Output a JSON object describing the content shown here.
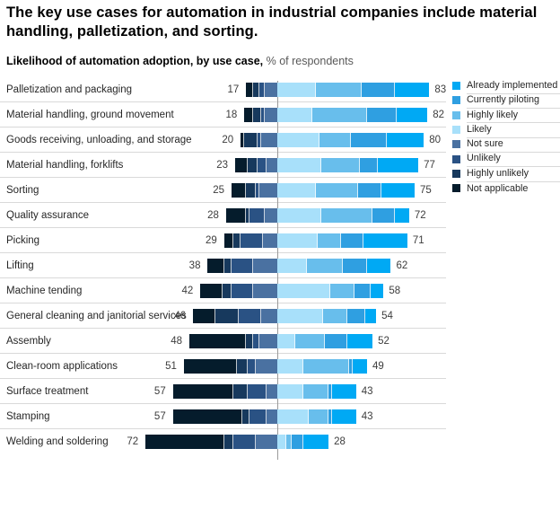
{
  "title": "The key use cases for automation in industrial companies include material handling, palletization, and sorting.",
  "subtitle": {
    "bold": "Likelihood of automation adoption, by use case,",
    "rest": " % of respondents"
  },
  "colors": {
    "already_implemented": "#00A9F4",
    "currently_piloting": "#2F9FE1",
    "highly_likely": "#68BEEC",
    "likely": "#A8E0FA",
    "not_sure": "#4A71A1",
    "unlikely": "#2A5284",
    "highly_unlikely": "#17395D",
    "not_applicable": "#051C2C",
    "separator": "#d9d9d9",
    "center_line": "#9b9b9b"
  },
  "legend": [
    {
      "key": "already_implemented",
      "label": "Already implemented"
    },
    {
      "key": "currently_piloting",
      "label": "Currently piloting"
    },
    {
      "key": "highly_likely",
      "label": "Highly likely"
    },
    {
      "key": "likely",
      "label": "Likely"
    },
    {
      "key": "not_sure",
      "label": "Not sure"
    },
    {
      "key": "unlikely",
      "label": "Unlikely"
    },
    {
      "key": "highly_unlikely",
      "label": "Highly unlikely"
    },
    {
      "key": "not_applicable",
      "label": "Not applicable"
    }
  ],
  "chart_data": {
    "type": "bar",
    "variant": "horizontal-diverging-stacked",
    "title": "Likelihood of automation adoption, by use case",
    "unit": "% of respondents",
    "legend_position": "right",
    "grid": "row-separators-only",
    "categories": [
      "Palletization and packaging",
      "Material handling, ground movement",
      "Goods receiving, unloading, and storage",
      "Material handling, forklifts",
      "Sorting",
      "Quality assurance",
      "Picking",
      "Lifting",
      "Machine tending",
      "General cleaning and janitorial services",
      "Assembly",
      "Clean-room applications",
      "Surface treatment",
      "Stamping",
      "Welding and soldering"
    ],
    "left_totals": [
      17,
      18,
      20,
      23,
      25,
      28,
      29,
      38,
      42,
      46,
      48,
      51,
      57,
      57,
      72
    ],
    "right_totals": [
      83,
      82,
      80,
      77,
      75,
      72,
      71,
      62,
      58,
      54,
      52,
      49,
      43,
      43,
      28
    ],
    "series": [
      {
        "name": "Not applicable",
        "key": "not_applicable",
        "side": "left",
        "order_note": "outermost left",
        "values": [
          4,
          5,
          2,
          7,
          8,
          11,
          5,
          9,
          12,
          12,
          31,
          29,
          33,
          38,
          43
        ]
      },
      {
        "name": "Highly unlikely",
        "key": "highly_unlikely",
        "side": "left",
        "values": [
          3,
          4,
          7,
          5,
          5,
          2,
          4,
          4,
          5,
          13,
          4,
          6,
          8,
          4,
          5
        ]
      },
      {
        "name": "Unlikely",
        "key": "unlikely",
        "side": "left",
        "values": [
          3,
          2,
          2,
          5,
          2,
          8,
          12,
          12,
          12,
          12,
          3,
          4,
          10,
          9,
          12
        ]
      },
      {
        "name": "Not sure",
        "key": "not_sure",
        "side": "left",
        "order_note": "adjacent to center",
        "values": [
          7,
          7,
          9,
          6,
          10,
          7,
          8,
          13,
          13,
          9,
          10,
          12,
          6,
          6,
          12
        ]
      },
      {
        "name": "Likely",
        "key": "likely",
        "side": "right",
        "order_note": "adjacent to center",
        "values": [
          21,
          19,
          23,
          24,
          21,
          24,
          22,
          16,
          29,
          25,
          10,
          14,
          14,
          17,
          5
        ]
      },
      {
        "name": "Highly likely",
        "key": "highly_likely",
        "side": "right",
        "values": [
          25,
          30,
          17,
          21,
          23,
          28,
          13,
          20,
          13,
          13,
          16,
          25,
          14,
          11,
          3
        ]
      },
      {
        "name": "Currently piloting",
        "key": "currently_piloting",
        "side": "right",
        "values": [
          18,
          16,
          20,
          10,
          13,
          12,
          12,
          13,
          9,
          10,
          12,
          2,
          2,
          2,
          6
        ]
      },
      {
        "name": "Already implemented",
        "key": "already_implemented",
        "side": "right",
        "order_note": "outermost right",
        "values": [
          19,
          17,
          20,
          22,
          18,
          8,
          24,
          13,
          7,
          6,
          14,
          8,
          13,
          13,
          14
        ]
      }
    ]
  }
}
